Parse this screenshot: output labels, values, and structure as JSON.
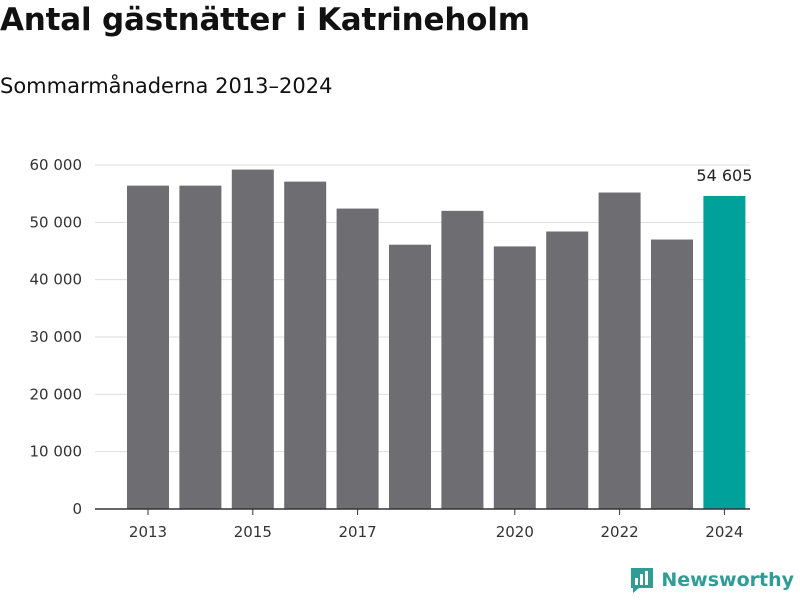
{
  "title": "Antal gästnätter i Katrineholm",
  "subtitle": "Sommarmånaderna 2013–2024",
  "brand": "Newsworthy",
  "colors": {
    "bar": "#6e6d72",
    "highlight": "#00a19a",
    "grid": "#dddddd",
    "axis": "#333333",
    "brand": "#2f9c95"
  },
  "chart_data": {
    "type": "bar",
    "title": "Antal gästnätter i Katrineholm",
    "subtitle": "Sommarmånaderna 2013–2024",
    "xlabel": "",
    "ylabel": "",
    "categories": [
      "2013",
      "2014",
      "2015",
      "2016",
      "2017",
      "2018",
      "2019",
      "2020",
      "2021",
      "2022",
      "2023",
      "2024"
    ],
    "values": [
      56400,
      56400,
      59200,
      57100,
      52400,
      46100,
      52000,
      45800,
      48400,
      55200,
      47000,
      54605
    ],
    "highlight_index": 11,
    "x_tick_labels": [
      "2013",
      "2015",
      "2017",
      "2020",
      "2022",
      "2024"
    ],
    "y_ticks": [
      0,
      10000,
      20000,
      30000,
      40000,
      50000,
      60000
    ],
    "y_tick_labels": [
      "0",
      "10 000",
      "20 000",
      "30 000",
      "40 000",
      "50 000",
      "60 000"
    ],
    "ylim": [
      0,
      60000
    ],
    "grid": true,
    "data_labels": [
      {
        "index": 11,
        "text": "54 605"
      }
    ]
  }
}
